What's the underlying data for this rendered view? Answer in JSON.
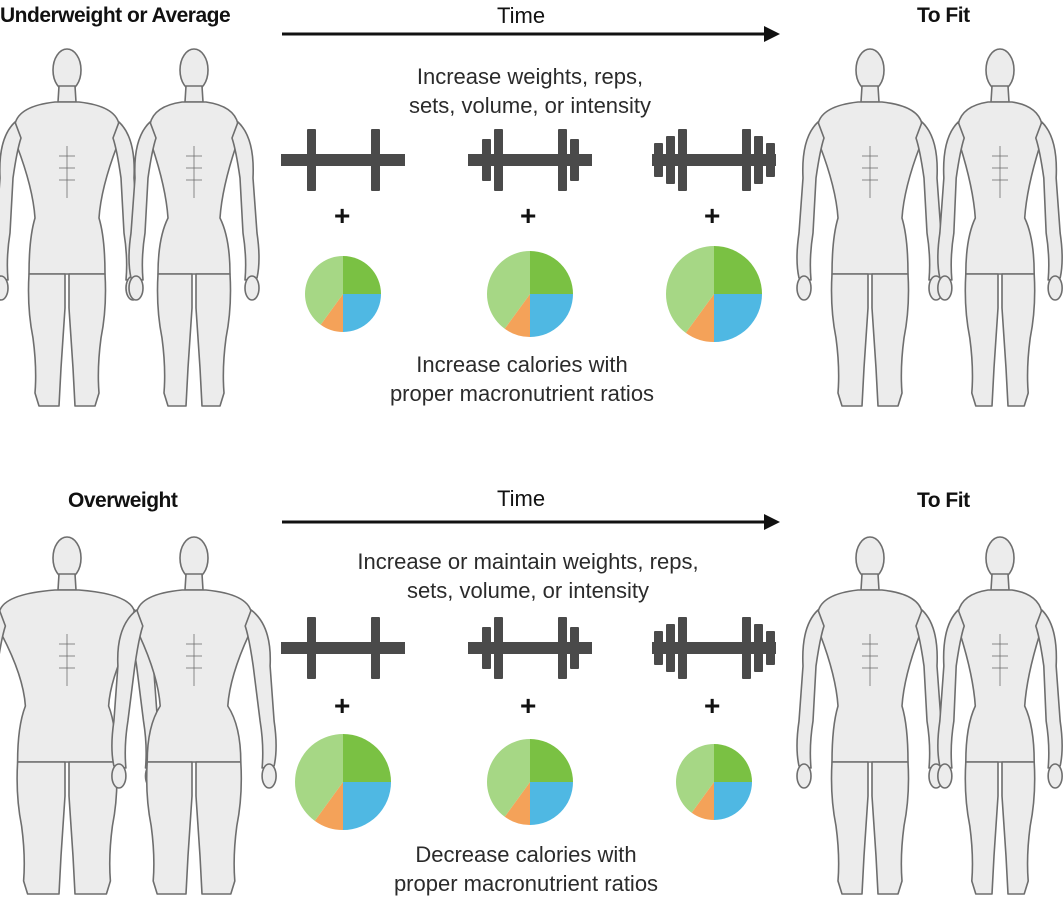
{
  "colors": {
    "body_outline": "#6e6e6e",
    "body_fill": "#ececec",
    "arrow": "#111111",
    "barbell": "#4a4a4a",
    "slice_light_green": "#a6d785",
    "slice_green": "#7ac143",
    "slice_blue": "#4fb8e3",
    "slice_orange": "#f4a259"
  },
  "rows": [
    {
      "start_label": "Underweight or Average",
      "time_label": "Time",
      "end_label": "To Fit",
      "exercise_text": [
        "Increase weights, reps,",
        "sets, volume, or intensity"
      ],
      "plus_sign": "+",
      "diet_text": [
        "Increase calories with",
        "proper macronutrient ratios"
      ],
      "start_body_type": "average",
      "barbell_plates": [
        1,
        2,
        3
      ],
      "pie_sizes": [
        "small",
        "medium",
        "large"
      ]
    },
    {
      "start_label": "Overweight",
      "time_label": "Time",
      "end_label": "To Fit",
      "exercise_text": [
        "Increase or maintain weights, reps,",
        "sets, volume, or intensity"
      ],
      "plus_sign": "+",
      "diet_text": [
        "Decrease calories with",
        "proper macronutrient ratios"
      ],
      "start_body_type": "overweight",
      "barbell_plates": [
        1,
        2,
        3
      ],
      "pie_sizes": [
        "large",
        "medium",
        "small"
      ]
    }
  ],
  "macro_slices": [
    {
      "color_key": "slice_green",
      "fraction": 0.25
    },
    {
      "color_key": "slice_blue",
      "fraction": 0.25
    },
    {
      "color_key": "slice_orange",
      "fraction": 0.1
    },
    {
      "color_key": "slice_light_green",
      "fraction": 0.4
    }
  ]
}
